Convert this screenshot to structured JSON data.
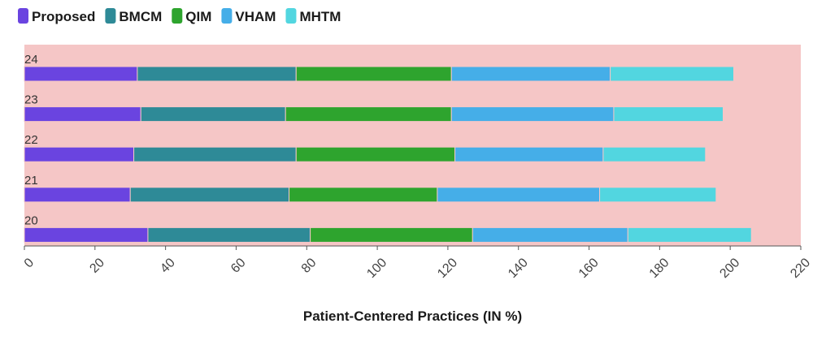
{
  "chart_data": {
    "type": "bar",
    "orientation": "horizontal",
    "stacked": true,
    "categories": [
      "24",
      "23",
      "22",
      "21",
      "20"
    ],
    "series": [
      {
        "name": "Proposed",
        "color": "#6a44e0",
        "values": [
          32,
          33,
          31,
          30,
          35
        ]
      },
      {
        "name": "BMCM",
        "color": "#2e8a97",
        "values": [
          45,
          41,
          46,
          45,
          46
        ]
      },
      {
        "name": "QIM",
        "color": "#2ea42e",
        "values": [
          44,
          47,
          45,
          42,
          46
        ]
      },
      {
        "name": "VHAM",
        "color": "#45aee8",
        "values": [
          45,
          46,
          42,
          46,
          44
        ]
      },
      {
        "name": "MHTM",
        "color": "#52d6e0",
        "values": [
          35,
          31,
          29,
          33,
          35
        ]
      }
    ],
    "xlabel": "Patient-Centered Practices (IN %)",
    "ylabel": "",
    "xlim": [
      0,
      220
    ],
    "xticks": [
      0,
      20,
      40,
      60,
      80,
      100,
      120,
      140,
      160,
      180,
      200,
      220
    ],
    "plot_background": "#f5c6c6",
    "grid": false,
    "legend_position": "top-left"
  }
}
